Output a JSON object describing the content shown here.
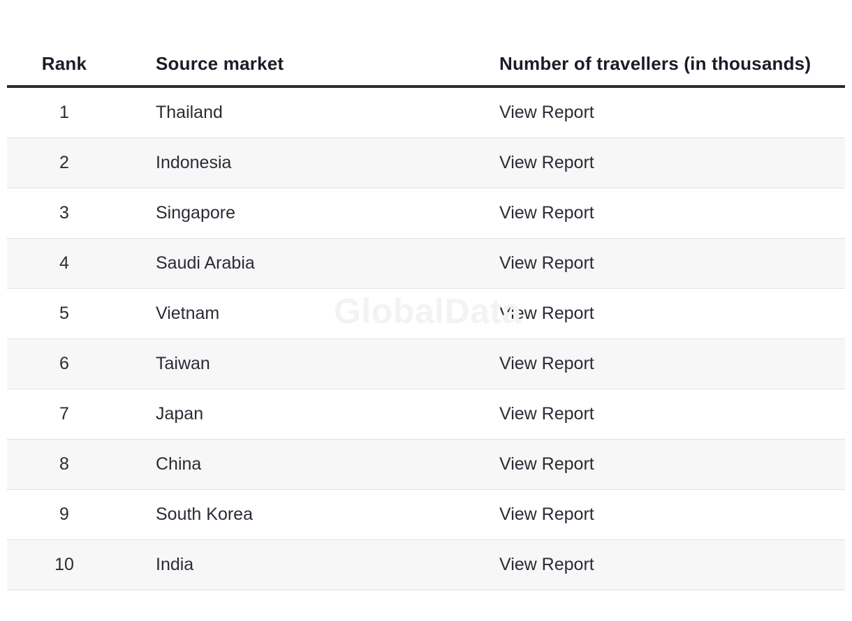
{
  "table": {
    "headers": {
      "rank": "Rank",
      "market": "Source market",
      "number": "Number of travellers (in thousands)"
    },
    "rows": [
      {
        "rank": "1",
        "market": "Thailand",
        "number": "View Report"
      },
      {
        "rank": "2",
        "market": "Indonesia",
        "number": "View Report"
      },
      {
        "rank": "3",
        "market": "Singapore",
        "number": "View Report"
      },
      {
        "rank": "4",
        "market": "Saudi Arabia",
        "number": "View Report"
      },
      {
        "rank": "5",
        "market": "Vietnam",
        "number": "View Report"
      },
      {
        "rank": "6",
        "market": "Taiwan",
        "number": "View Report"
      },
      {
        "rank": "7",
        "market": "Japan",
        "number": "View Report"
      },
      {
        "rank": "8",
        "market": "China",
        "number": "View Report"
      },
      {
        "rank": "9",
        "market": "South Korea",
        "number": "View Report"
      },
      {
        "rank": "10",
        "market": "India",
        "number": "View Report"
      }
    ]
  },
  "watermark": "GlobalData",
  "colors": {
    "header_text": "#1c1c28",
    "header_rule": "#2a2a33",
    "body_text": "#2b2b35",
    "stripe": "#f7f7f7",
    "row_divider": "#e2e2e2"
  }
}
